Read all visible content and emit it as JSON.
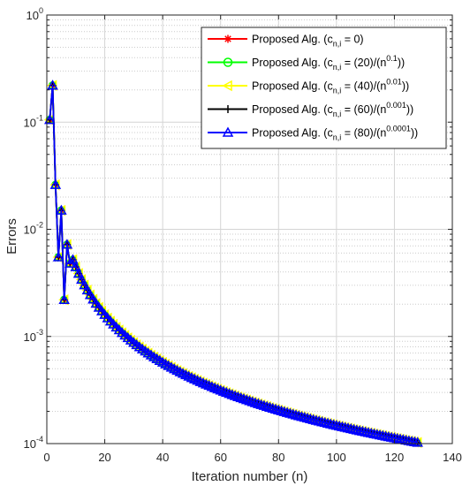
{
  "chart_data": {
    "type": "line",
    "xlabel": "Iteration number (n)",
    "ylabel": "Errors",
    "xlim": [
      0,
      140
    ],
    "ylim": [
      0.0001,
      1
    ],
    "yscale": "log",
    "grid": true,
    "legend_position": "top-right",
    "x_ticks": [
      "0",
      "20",
      "40",
      "60",
      "80",
      "100",
      "120",
      "140"
    ],
    "y_ticks": [
      {
        "base": "10",
        "exp": "0"
      },
      {
        "base": "10",
        "exp": "-1"
      },
      {
        "base": "10",
        "exp": "-2"
      },
      {
        "base": "10",
        "exp": "-3"
      },
      {
        "base": "10",
        "exp": "-4"
      }
    ],
    "series": [
      {
        "name": "Proposed Alg. (c_{n,i} = 0)",
        "color": "#ff0000",
        "marker": "asterisk",
        "legend": {
          "prefix": "Proposed Alg. (c",
          "sub": "n,i",
          "mid": " = 0)",
          "sup": "",
          "suffix": ""
        }
      },
      {
        "name": "Proposed  Alg. (c_{n,i} = (20)/(n^{0.1}))",
        "color": "#00ff00",
        "marker": "circle",
        "legend": {
          "prefix": "Proposed  Alg. (c",
          "sub": "n,i",
          "mid": " = (20)/(n",
          "sup": "0.1",
          "suffix": "))"
        }
      },
      {
        "name": "Proposed  Alg. (c_{n,i} = (40)/(n^{0.01}))",
        "color": "#ffff00",
        "marker": "triangle-left",
        "legend": {
          "prefix": "Proposed  Alg. (c",
          "sub": "n,i",
          "mid": " = (40)/(n",
          "sup": "0.01",
          "suffix": "))"
        }
      },
      {
        "name": "Proposed  Alg. (c_{n,i} = (60)/(n^{0.001}))",
        "color": "#000000",
        "marker": "plus",
        "legend": {
          "prefix": "Proposed  Alg. (c",
          "sub": "n,i",
          "mid": " = (60)/(n",
          "sup": "0.001",
          "suffix": "))"
        }
      },
      {
        "name": "Proposed  Alg. (c_{n,i} = (80)/(n^{0.0001}))",
        "color": "#0000ff",
        "marker": "triangle-up",
        "legend": {
          "prefix": "Proposed  Alg. (c",
          "sub": "n,i",
          "mid": " = (80)/(n",
          "sup": "0.0001",
          "suffix": "))"
        }
      }
    ],
    "curve": {
      "initial_points": [
        [
          1,
          0.105
        ],
        [
          2,
          0.22
        ],
        [
          3,
          0.026
        ],
        [
          4,
          0.0055
        ],
        [
          5,
          0.015
        ],
        [
          6,
          0.0022
        ],
        [
          7,
          0.0072
        ],
        [
          8,
          0.0048
        ],
        [
          9,
          0.0052
        ]
      ],
      "decay_law": "y = 0.0052 * (9/x)^1.48 for x >= 9",
      "x_end": 128
    }
  }
}
